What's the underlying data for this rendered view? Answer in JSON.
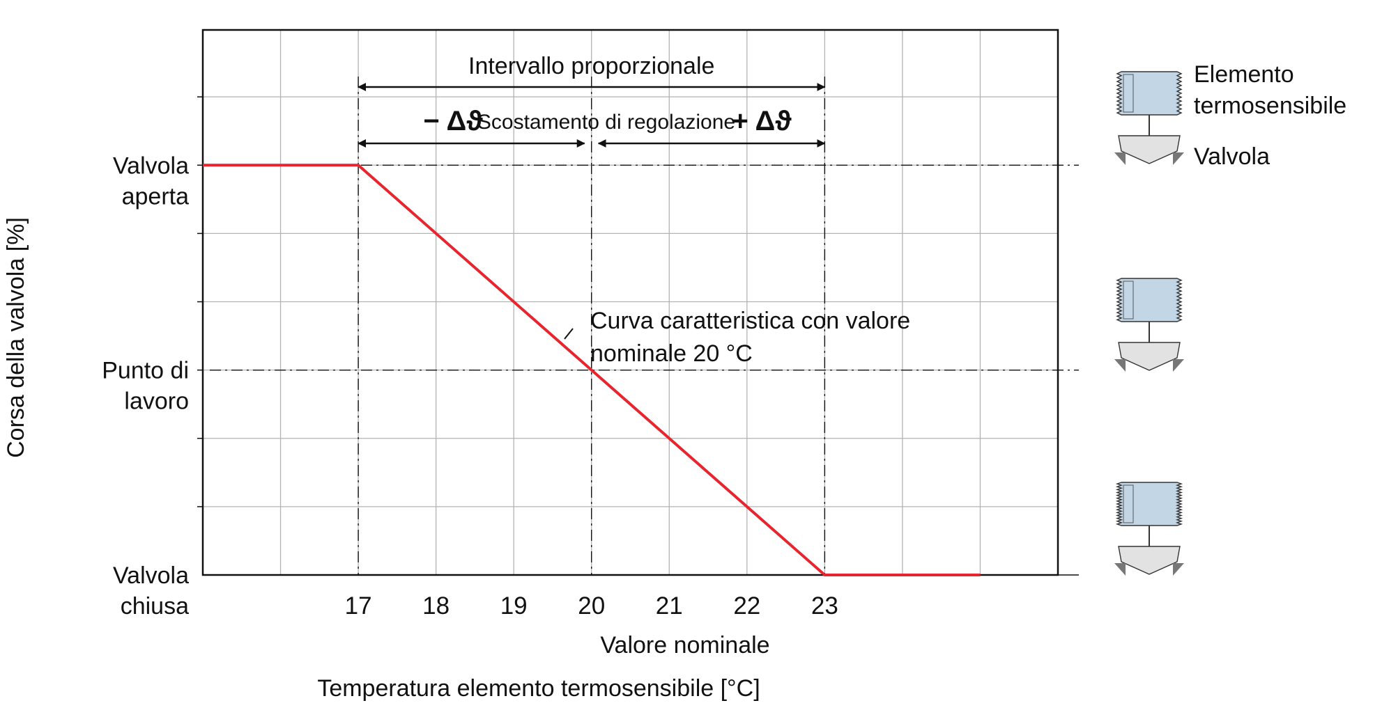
{
  "chart_data": {
    "type": "line",
    "title": "",
    "xlabel": "Valore nominale",
    "xlabel_secondary": "Temperatura elemento termosensibile [°C]",
    "ylabel": "Corsa della valvola [%]",
    "x_ticks": [
      17,
      18,
      19,
      20,
      21,
      22,
      23
    ],
    "xlim": [
      15,
      26
    ],
    "y_levels": {
      "closed": "Valvola chiusa",
      "working_point": "Punto di lavoro",
      "open": "Valvola aperta"
    },
    "y_tick_labels": [
      {
        "value": 100,
        "line1": "Valvola",
        "line2": "aperta"
      },
      {
        "value": 50,
        "line1": "Punto di",
        "line2": "lavoro"
      },
      {
        "value": 0,
        "line1": "Valvola",
        "line2": "chiusa"
      }
    ],
    "ylim": [
      0,
      133
    ],
    "grid": true,
    "series": [
      {
        "name": "",
        "color": "#e8252e",
        "x": [
          15,
          17,
          20,
          23,
          25
        ],
        "y": [
          100,
          100,
          50,
          0,
          0
        ]
      }
    ],
    "annotations": {
      "proportional_range": "Intervallo proporzionale",
      "deviation": "Scostamento di regolazione",
      "minus_delta": "− Δϑ",
      "plus_delta": "+ Δϑ",
      "curve_label_line1": "Curva caratteristica con valore",
      "curve_label_line2": "nominale 20 °C",
      "proportional_range_from": 17,
      "proportional_range_to": 23,
      "setpoint": 20
    },
    "legend": {
      "sensor": [
        "Elemento",
        "termosensibile"
      ],
      "valve": "Valvola"
    },
    "colors": {
      "curve": "#e8252e",
      "sensor_fill": "#c3d6e6",
      "valve_fill": "#e2e2e2",
      "grid": "#b3b3b3",
      "axis": "#111111"
    }
  }
}
